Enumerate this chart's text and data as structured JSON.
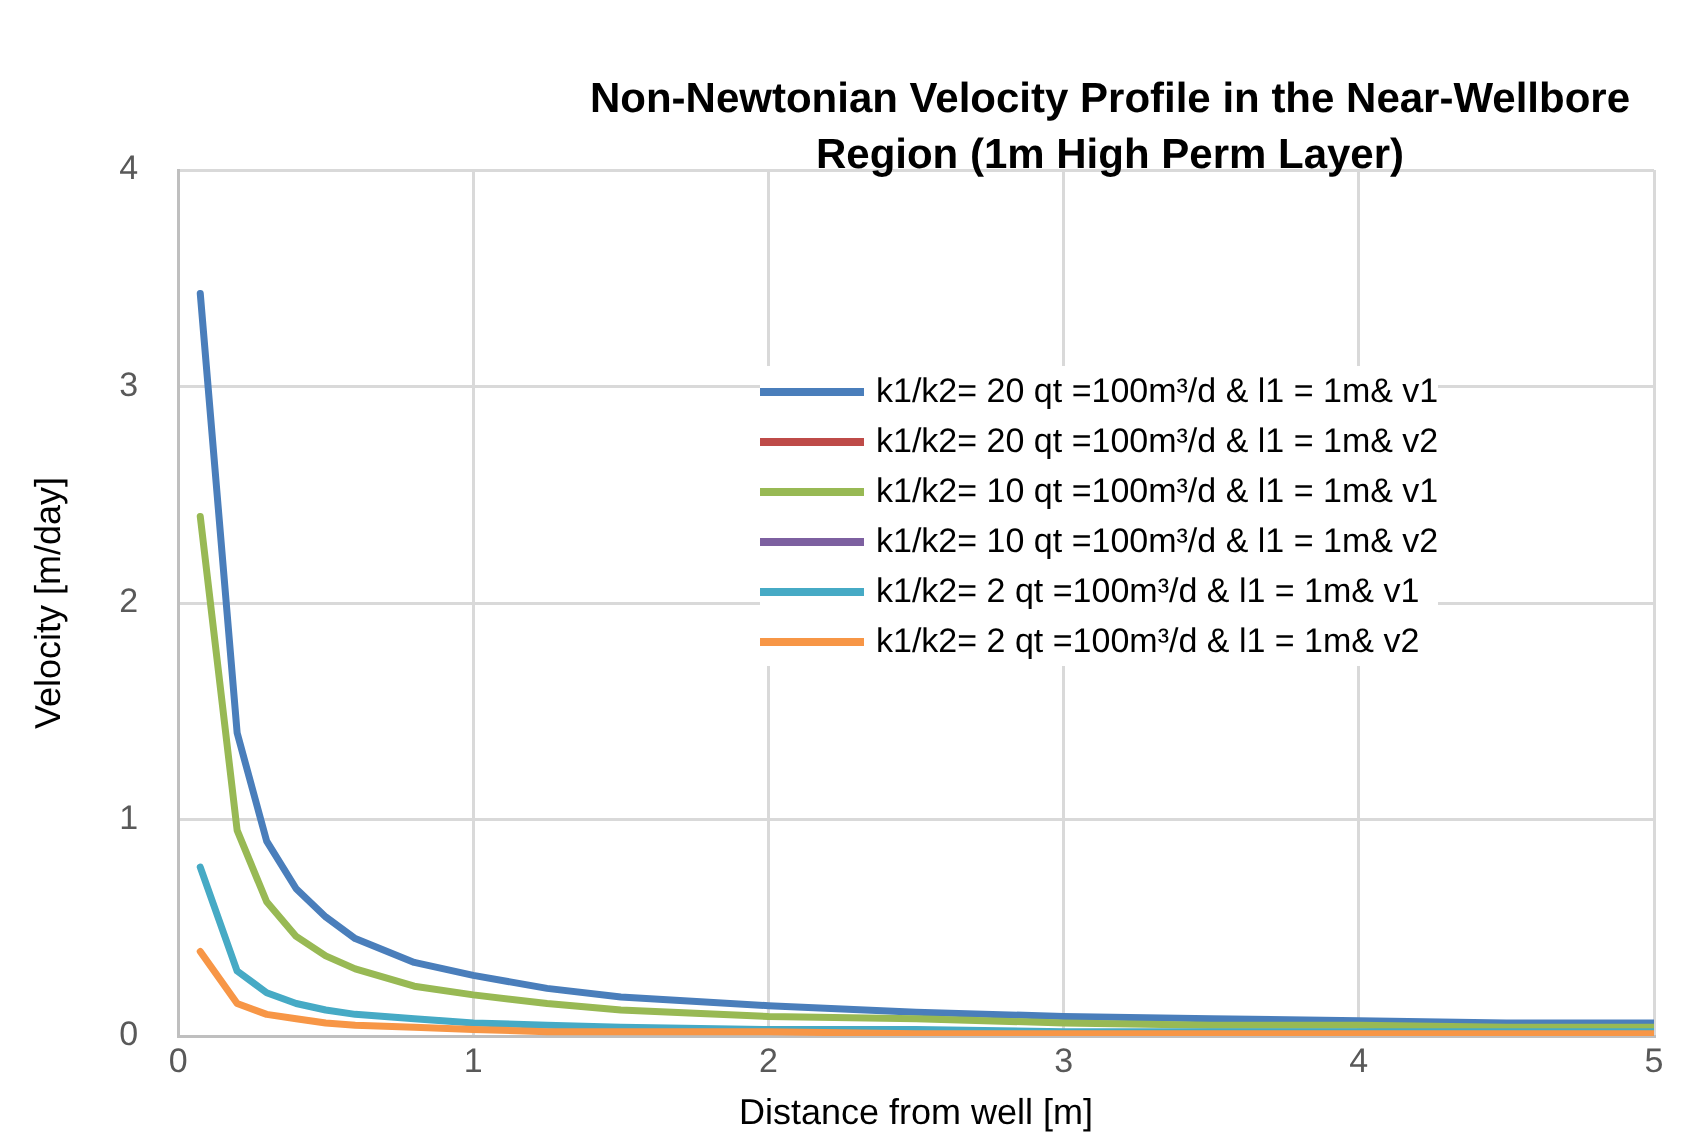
{
  "chart_data": {
    "type": "line",
    "title": "Non-Newtonian Velocity Profile in the Near-Wellbore Region (1m High Perm Layer)",
    "xlabel": "Distance from well [m]",
    "ylabel": "Velocity [m/day]",
    "x": [
      0.075,
      0.2,
      0.3,
      0.4,
      0.5,
      0.6,
      0.8,
      1,
      1.25,
      1.5,
      2,
      2.5,
      3,
      3.5,
      4,
      4.5,
      5
    ],
    "series": [
      {
        "name": "k1/k2= 20 qt =100m³/d & l1 = 1m& v1",
        "color": "#4a7ebb",
        "values": [
          3.43,
          1.4,
          0.9,
          0.68,
          0.55,
          0.45,
          0.34,
          0.28,
          0.22,
          0.18,
          0.14,
          0.11,
          0.09,
          0.08,
          0.07,
          0.06,
          0.06
        ]
      },
      {
        "name": "k1/k2= 20 qt =100m³/d & l1 = 1m& v2",
        "color": "#be4b48",
        "values": [
          null,
          null,
          null,
          null,
          null,
          null,
          null,
          null,
          null,
          null,
          null,
          null,
          null,
          null,
          null,
          null,
          null
        ]
      },
      {
        "name": "k1/k2= 10 qt =100m³/d & l1 = 1m& v1",
        "color": "#98b954",
        "values": [
          2.4,
          0.95,
          0.62,
          0.46,
          0.37,
          0.31,
          0.23,
          0.19,
          0.15,
          0.12,
          0.09,
          0.08,
          0.06,
          0.05,
          0.05,
          0.04,
          0.04
        ]
      },
      {
        "name": "k1/k2= 10 qt =100m³/d & l1 = 1m& v2",
        "color": "#7d60a0",
        "values": [
          null,
          null,
          null,
          null,
          null,
          null,
          null,
          null,
          null,
          null,
          null,
          null,
          null,
          null,
          null,
          null,
          null
        ]
      },
      {
        "name": "k1/k2= 2 qt =100m³/d & l1 = 1m& v1",
        "color": "#46aac5",
        "values": [
          0.78,
          0.3,
          0.2,
          0.15,
          0.12,
          0.1,
          0.08,
          0.06,
          0.05,
          0.04,
          0.03,
          0.03,
          0.02,
          0.02,
          0.02,
          0.02,
          0.02
        ]
      },
      {
        "name": "k1/k2= 2 qt =100m³/d & l1 = 1m& v2",
        "color": "#f79646",
        "values": [
          0.39,
          0.15,
          0.1,
          0.08,
          0.06,
          0.05,
          0.04,
          0.03,
          0.02,
          0.02,
          0.02,
          0.01,
          0.01,
          0.01,
          0.01,
          0.01,
          0.01
        ]
      }
    ],
    "xlim": [
      0,
      5
    ],
    "xticks": [
      0,
      1,
      2,
      3,
      4,
      5
    ],
    "ylim": [
      0,
      4
    ],
    "yticks": [
      0,
      1,
      2,
      3,
      4
    ],
    "grid": true,
    "legend": "right",
    "marker": "none",
    "line_style": "solid"
  }
}
